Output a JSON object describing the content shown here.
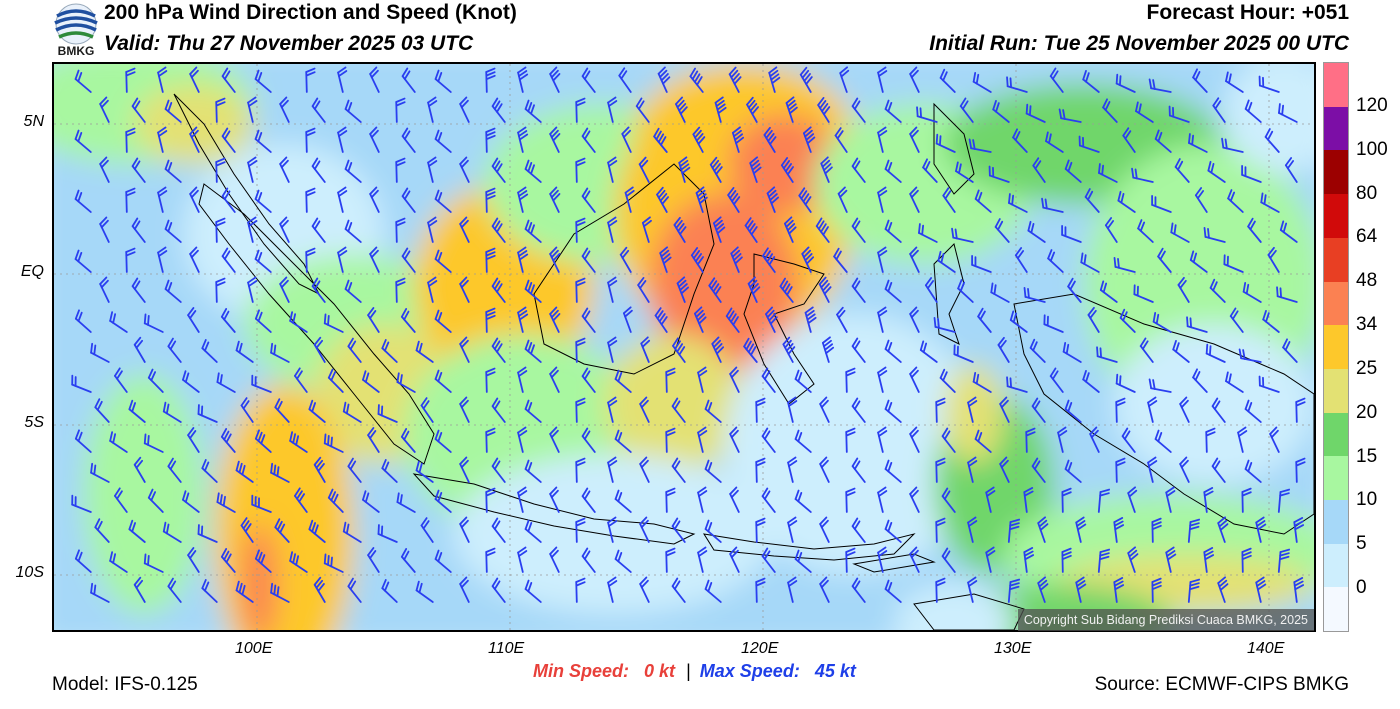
{
  "header": {
    "title": "200 hPa Wind Direction and Speed (Knot)",
    "valid": "Valid: Thu 27 November 2025 03 UTC",
    "forecast_hour": "Forecast Hour: +051",
    "initial_run": "Initial Run: Tue 25 November 2025 00 UTC",
    "logo_text": "BMKG"
  },
  "axes": {
    "lon_labels": [
      "100E",
      "110E",
      "120E",
      "130E",
      "140E"
    ],
    "lat_labels": [
      "5N",
      "EQ",
      "5S",
      "10S"
    ]
  },
  "colorbar": {
    "labels": [
      "0",
      "5",
      "10",
      "15",
      "20",
      "25",
      "34",
      "48",
      "64",
      "80",
      "100",
      "120"
    ],
    "colors": [
      "#f4f9ff",
      "#cdeefd",
      "#a6d8f8",
      "#a8f7a0",
      "#6fd66a",
      "#e3e173",
      "#fdc82b",
      "#fb8152",
      "#e83f23",
      "#d10a0a",
      "#9c0000",
      "#7c0ea6",
      "#ff6f86"
    ]
  },
  "footer": {
    "model": "Model: IFS-0.125",
    "source": "Source: ECMWF-CIPS BMKG",
    "min_speed_label": "Min Speed:",
    "min_speed_value": "0 kt",
    "separator": "|",
    "max_speed_label": "Max Speed:",
    "max_speed_value": "45 kt",
    "min_color": "#e8403a",
    "max_color": "#1e3fe8"
  },
  "copyright": "Copyright Sub Bidang Prediksi Cuaca BMKG, 2025",
  "colors": {
    "barb": "#2a3ff0",
    "coast": "#000000"
  }
}
